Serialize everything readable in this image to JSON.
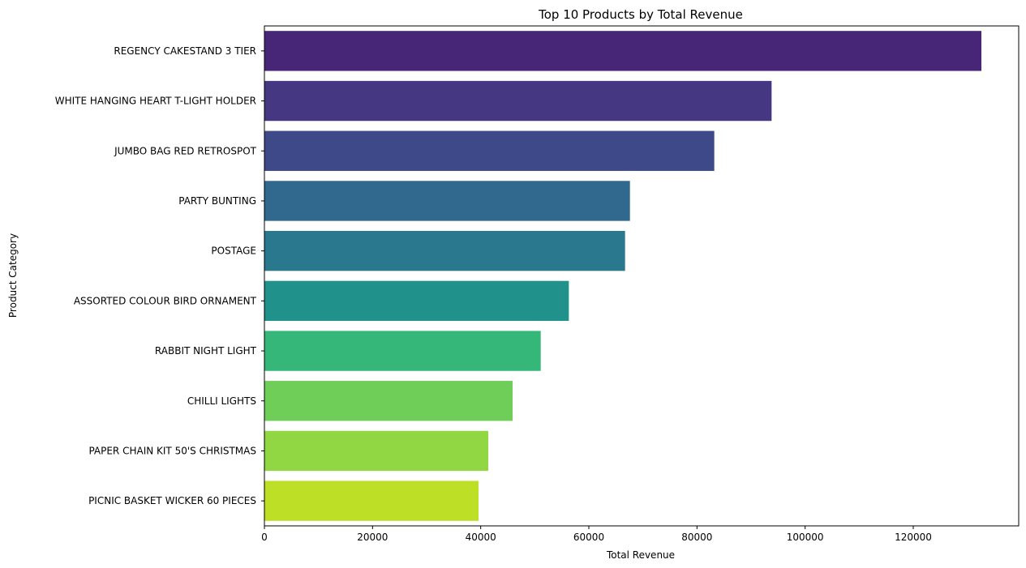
{
  "chart_data": {
    "type": "bar",
    "orientation": "horizontal",
    "title": "Top 10 Products by Total Revenue",
    "xlabel": "Total Revenue",
    "ylabel": "Product Category",
    "categories": [
      "REGENCY CAKESTAND 3 TIER",
      "WHITE HANGING HEART T-LIGHT HOLDER",
      "JUMBO BAG RED RETROSPOT",
      "PARTY BUNTING",
      "POSTAGE",
      "ASSORTED COLOUR BIRD ORNAMENT",
      "RABBIT NIGHT LIGHT",
      "CHILLI LIGHTS",
      "PAPER CHAIN KIT 50'S CHRISTMAS",
      "PICNIC BASKET WICKER 60 PIECES"
    ],
    "values": [
      132600,
      93800,
      83200,
      67600,
      66700,
      56300,
      51100,
      45900,
      41400,
      39600
    ],
    "colors": [
      "#482677",
      "#453781",
      "#3e4989",
      "#31688e",
      "#2a788e",
      "#21918c",
      "#35b779",
      "#6ece58",
      "#90d743",
      "#bddf26"
    ],
    "xticks": [
      "0",
      "20000",
      "40000",
      "60000",
      "80000",
      "100000",
      "120000"
    ],
    "xlim": [
      0,
      139500
    ],
    "grid": false
  }
}
